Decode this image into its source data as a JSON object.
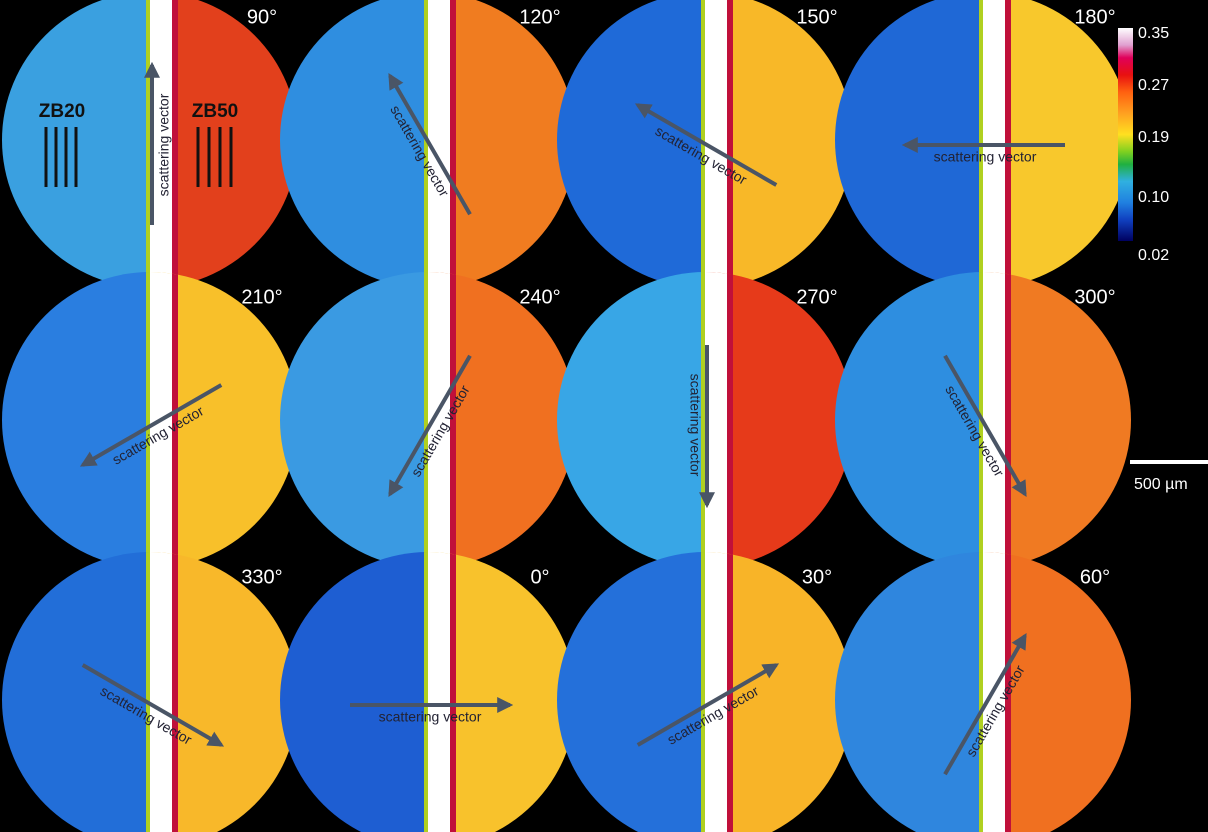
{
  "panels": [
    {
      "angle": "90°",
      "vector": "scattering vector"
    },
    {
      "angle": "120°",
      "vector": "scattering vector"
    },
    {
      "angle": "150°",
      "vector": "scattering vector"
    },
    {
      "angle": "180°",
      "vector": "scattering vector"
    },
    {
      "angle": "210°",
      "vector": "scattering vector"
    },
    {
      "angle": "240°",
      "vector": "scattering vector"
    },
    {
      "angle": "270°",
      "vector": "scattering vector"
    },
    {
      "angle": "300°",
      "vector": "scattering vector"
    },
    {
      "angle": "330°",
      "vector": "scattering vector"
    },
    {
      "angle": "0°",
      "vector": "scattering vector"
    },
    {
      "angle": "30°",
      "vector": "scattering vector"
    },
    {
      "angle": "60°",
      "vector": "scattering vector"
    }
  ],
  "regions": {
    "left": "ZB20",
    "right": "ZB50"
  },
  "colorbar": {
    "ticks": [
      "0.35",
      "0.27",
      "0.19",
      "0.10",
      "0.02"
    ]
  },
  "scale_bar": "500 µm"
}
